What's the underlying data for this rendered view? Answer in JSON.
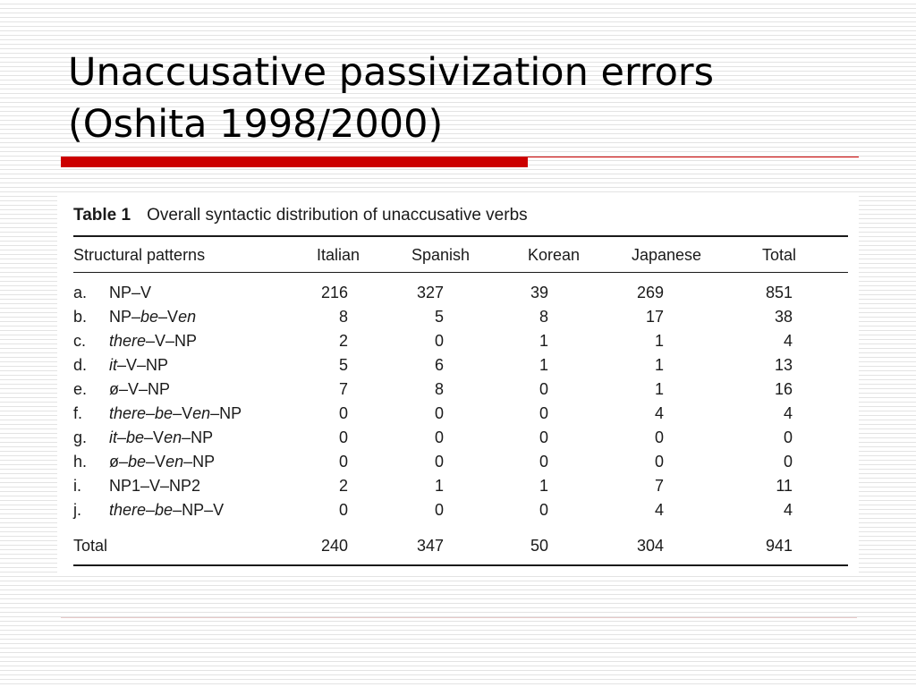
{
  "slide": {
    "title_line1": "Unaccusative passivization errors",
    "title_line2": "(Oshita 1998/2000)"
  },
  "table": {
    "caption_label": "Table 1",
    "caption_text": "Overall syntactic distribution of unaccusative verbs",
    "headers": [
      "Structural patterns",
      "Italian",
      "Spanish",
      "Korean",
      "Japanese",
      "Total"
    ],
    "rows": [
      {
        "letter": "a.",
        "pattern": [
          {
            "t": "NP–V",
            "i": false
          }
        ],
        "values": [
          "216",
          "327",
          "39",
          "269",
          "851"
        ]
      },
      {
        "letter": "b.",
        "pattern": [
          {
            "t": "NP–",
            "i": false
          },
          {
            "t": "be",
            "i": true
          },
          {
            "t": "–V",
            "i": false
          },
          {
            "t": "en",
            "i": true
          }
        ],
        "values": [
          "8",
          "5",
          "8",
          "17",
          "38"
        ]
      },
      {
        "letter": "c.",
        "pattern": [
          {
            "t": "there",
            "i": true
          },
          {
            "t": "–V–NP",
            "i": false
          }
        ],
        "values": [
          "2",
          "0",
          "1",
          "1",
          "4"
        ]
      },
      {
        "letter": "d.",
        "pattern": [
          {
            "t": "it",
            "i": true
          },
          {
            "t": "–V–NP",
            "i": false
          }
        ],
        "values": [
          "5",
          "6",
          "1",
          "1",
          "13"
        ]
      },
      {
        "letter": "e.",
        "pattern": [
          {
            "t": "ø–V–NP",
            "i": false
          }
        ],
        "values": [
          "7",
          "8",
          "0",
          "1",
          "16"
        ]
      },
      {
        "letter": "f.",
        "pattern": [
          {
            "t": "there",
            "i": true
          },
          {
            "t": "–",
            "i": false
          },
          {
            "t": "be",
            "i": true
          },
          {
            "t": "–V",
            "i": false
          },
          {
            "t": "en",
            "i": true
          },
          {
            "t": "–NP",
            "i": false
          }
        ],
        "values": [
          "0",
          "0",
          "0",
          "4",
          "4"
        ]
      },
      {
        "letter": "g.",
        "pattern": [
          {
            "t": "it",
            "i": true
          },
          {
            "t": "–",
            "i": false
          },
          {
            "t": "be",
            "i": true
          },
          {
            "t": "–V",
            "i": false
          },
          {
            "t": "en",
            "i": true
          },
          {
            "t": "–NP",
            "i": false
          }
        ],
        "values": [
          "0",
          "0",
          "0",
          "0",
          "0"
        ]
      },
      {
        "letter": "h.",
        "pattern": [
          {
            "t": "ø–",
            "i": false
          },
          {
            "t": "be",
            "i": true
          },
          {
            "t": "–V",
            "i": false
          },
          {
            "t": "en",
            "i": true
          },
          {
            "t": "–NP",
            "i": false
          }
        ],
        "values": [
          "0",
          "0",
          "0",
          "0",
          "0"
        ]
      },
      {
        "letter": "i.",
        "pattern": [
          {
            "t": "NP1–V–NP2",
            "i": false
          }
        ],
        "values": [
          "2",
          "1",
          "1",
          "7",
          "11"
        ]
      },
      {
        "letter": "j.",
        "pattern": [
          {
            "t": "there",
            "i": true
          },
          {
            "t": "–",
            "i": false
          },
          {
            "t": "be",
            "i": true
          },
          {
            "t": "–NP–V",
            "i": false
          }
        ],
        "values": [
          "0",
          "0",
          "0",
          "4",
          "4"
        ]
      }
    ],
    "total_row": {
      "label": "Total",
      "values": [
        "240",
        "347",
        "50",
        "304",
        "941"
      ]
    }
  },
  "colors": {
    "accent": "#cc0000",
    "text": "#000000"
  }
}
